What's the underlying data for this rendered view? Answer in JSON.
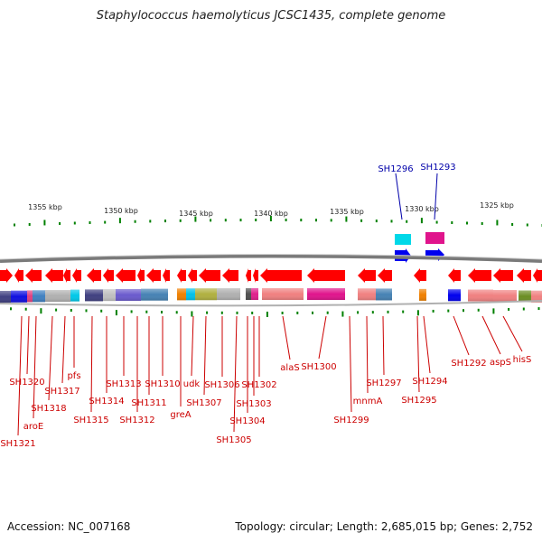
{
  "title": "Staphylococcus haemolyticus JCSC1435, complete genome",
  "footer": {
    "accession": "Accession: NC_007168",
    "topology": "Topology: circular; Length: 2,685,015 bp; Genes: 2,752"
  },
  "scale": [
    "1355 kbp",
    "1350 kbp",
    "1345 kbp",
    "1340 kbp",
    "1335 kbp",
    "1330 kbp",
    "1325 kbp"
  ],
  "highlight_labels": [
    "SH1296",
    "SH1293"
  ],
  "gene_labels": [
    "SH1320",
    "SH1321",
    "aroE",
    "SH1318",
    "SH1317",
    "pfs",
    "SH1315",
    "SH1314",
    "SH1313",
    "SH1312",
    "SH1311",
    "SH1310",
    "greA",
    "udk",
    "SH1307",
    "SH1306",
    "SH1305",
    "SH1304",
    "SH1303",
    "SH1302",
    "alaS",
    "SH1300",
    "SH1299",
    "mnmA",
    "SH1297",
    "SH1295",
    "SH1294",
    "SH1292",
    "aspS",
    "hisS"
  ],
  "colors": {
    "arrow": "#ff0000",
    "label_red": "#cc0000",
    "label_blue": "#0000aa",
    "tick": "#008000",
    "backbone": "#888888"
  }
}
